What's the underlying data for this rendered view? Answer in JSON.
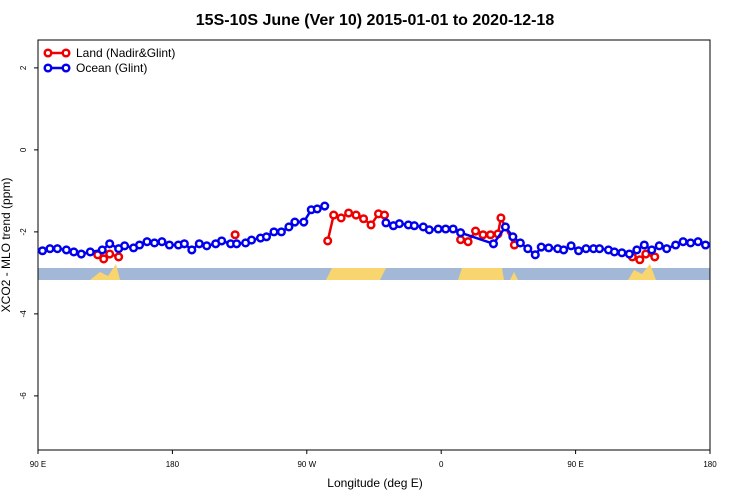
{
  "chart_data": {
    "type": "line",
    "title": "15S-10S June (Ver 10)   2015-01-01 to 2020-12-18",
    "xlabel": "Longitude (deg E)",
    "ylabel": "XCO2 - MLO trend (ppm)",
    "xlim": [
      90,
      540
    ],
    "ylim": [
      -7.32,
      2.68
    ],
    "xticks": [
      {
        "value": 90,
        "label": "90 E"
      },
      180,
      {
        "value": 270,
        "label": "90 W"
      },
      {
        "value": 360,
        "label": "0"
      },
      {
        "value": 450,
        "label": "90 E"
      },
      {
        "value": 540,
        "label": "180"
      }
    ],
    "yticks": [
      2,
      0,
      -2,
      -4,
      -6
    ],
    "legend": "top-left",
    "series": [
      {
        "name": "Land (Nadir&Glint)",
        "color": "#ee0000",
        "x": [
          130,
          134,
          138,
          144,
          null,
          222,
          null,
          284,
          288,
          293,
          298,
          303,
          308,
          313,
          318,
          322,
          null,
          373,
          378,
          383,
          388,
          393,
          398,
          400,
          409,
          null,
          488,
          493,
          497,
          503
        ],
        "values": [
          -2.56,
          -2.66,
          -2.54,
          -2.61,
          null,
          -2.07,
          null,
          -2.22,
          -1.59,
          -1.66,
          -1.54,
          -1.59,
          -1.68,
          -1.83,
          -1.56,
          -1.59,
          null,
          -2.19,
          -2.24,
          -1.98,
          -2.07,
          -2.07,
          -2.05,
          -1.66,
          -2.32,
          null,
          -2.61,
          -2.68,
          -2.54,
          -2.61
        ]
      },
      {
        "name": "Ocean (Glint)",
        "color": "#0000ee",
        "x": [
          93,
          98,
          103,
          109,
          114,
          119,
          125,
          133,
          138,
          144,
          148,
          154,
          158,
          163,
          168,
          173,
          178,
          184,
          188,
          193,
          198,
          203,
          209,
          213,
          219,
          223,
          229,
          233,
          239,
          243,
          248,
          253,
          258,
          262,
          268,
          273,
          277,
          282,
          null,
          323,
          328,
          332,
          338,
          342,
          348,
          352,
          358,
          363,
          368,
          373,
          395,
          403,
          408,
          413,
          418,
          423,
          427,
          432,
          438,
          442,
          447,
          452,
          457,
          462,
          466,
          472,
          476,
          481,
          486,
          491,
          496,
          501,
          506,
          511,
          517,
          522,
          527,
          532,
          537
        ],
        "values": [
          -2.46,
          -2.41,
          -2.41,
          -2.44,
          -2.49,
          -2.54,
          -2.49,
          -2.44,
          -2.29,
          -2.41,
          -2.34,
          -2.39,
          -2.32,
          -2.24,
          -2.27,
          -2.24,
          -2.32,
          -2.32,
          -2.29,
          -2.44,
          -2.29,
          -2.34,
          -2.29,
          -2.22,
          -2.29,
          -2.29,
          -2.27,
          -2.2,
          -2.15,
          -2.12,
          -2.0,
          -2.0,
          -1.88,
          -1.76,
          -1.76,
          -1.46,
          -1.44,
          -1.37,
          null,
          -1.78,
          -1.85,
          -1.8,
          -1.83,
          -1.85,
          -1.88,
          -1.95,
          -1.93,
          -1.93,
          -1.93,
          -2.02,
          -2.29,
          -1.88,
          -2.12,
          -2.27,
          -2.41,
          -2.56,
          -2.37,
          -2.39,
          -2.41,
          -2.44,
          -2.34,
          -2.46,
          -2.41,
          -2.41,
          -2.41,
          -2.44,
          -2.49,
          -2.51,
          -2.54,
          -2.44,
          -2.32,
          -2.44,
          -2.34,
          -2.41,
          -2.32,
          -2.24,
          -2.27,
          -2.24,
          -2.32
        ]
      }
    ]
  }
}
